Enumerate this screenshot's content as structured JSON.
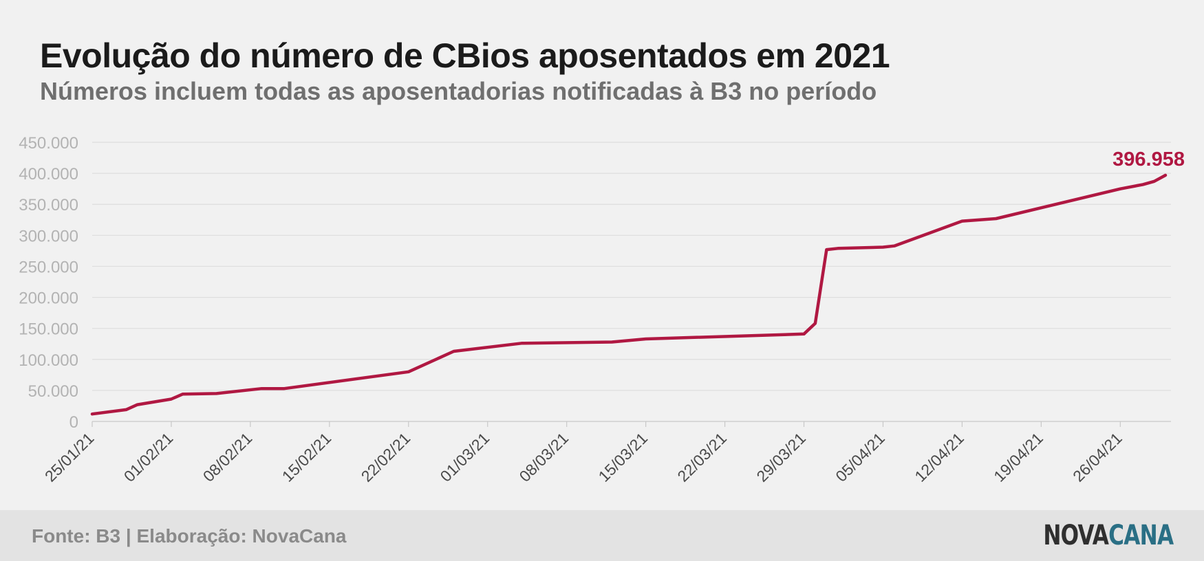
{
  "title": "Evolução do número de CBios aposentados em 2021",
  "subtitle": "Números incluem todas as aposentadorias notificadas à B3 no período",
  "footer": {
    "source": "Fonte: B3 | Elaboração: NovaCana",
    "logo_part1": "NOVA",
    "logo_part2": "CANA"
  },
  "colors": {
    "line": "#b01842",
    "grid": "#dedede",
    "tick_text": "#b3b3b3",
    "x_tick_text": "#4a4a4a",
    "logo_dark": "#2f2f2f",
    "logo_teal": "#2a6f85"
  },
  "chart_data": {
    "type": "line",
    "x_start": "25/01/21",
    "x_end": "30/04/21",
    "ylim": [
      0,
      450000
    ],
    "yticks": [
      {
        "value": 0,
        "label": "0"
      },
      {
        "value": 50000,
        "label": "50.000"
      },
      {
        "value": 100000,
        "label": "100.000"
      },
      {
        "value": 150000,
        "label": "150.000"
      },
      {
        "value": 200000,
        "label": "200.000"
      },
      {
        "value": 250000,
        "label": "250.000"
      },
      {
        "value": 300000,
        "label": "300.000"
      },
      {
        "value": 350000,
        "label": "350.000"
      },
      {
        "value": 400000,
        "label": "400.000"
      },
      {
        "value": 450000,
        "label": "450.000"
      }
    ],
    "xticks": [
      "25/01/21",
      "01/02/21",
      "08/02/21",
      "15/02/21",
      "22/02/21",
      "01/03/21",
      "08/03/21",
      "15/03/21",
      "22/03/21",
      "29/03/21",
      "05/04/21",
      "12/04/21",
      "19/04/21",
      "26/04/21"
    ],
    "grid": true,
    "end_label": "396.958",
    "series": [
      {
        "points": [
          {
            "x": "25/01/21",
            "y": 12000
          },
          {
            "x": "28/01/21",
            "y": 19000
          },
          {
            "x": "29/01/21",
            "y": 27000
          },
          {
            "x": "01/02/21",
            "y": 36000
          },
          {
            "x": "02/02/21",
            "y": 44000
          },
          {
            "x": "05/02/21",
            "y": 45000
          },
          {
            "x": "09/02/21",
            "y": 53000
          },
          {
            "x": "11/02/21",
            "y": 53000
          },
          {
            "x": "22/02/21",
            "y": 80000
          },
          {
            "x": "26/02/21",
            "y": 113000
          },
          {
            "x": "04/03/21",
            "y": 126000
          },
          {
            "x": "12/03/21",
            "y": 128000
          },
          {
            "x": "15/03/21",
            "y": 133000
          },
          {
            "x": "29/03/21",
            "y": 141000
          },
          {
            "x": "30/03/21",
            "y": 158000
          },
          {
            "x": "31/03/21",
            "y": 277000
          },
          {
            "x": "01/04/21",
            "y": 279000
          },
          {
            "x": "05/04/21",
            "y": 281000
          },
          {
            "x": "06/04/21",
            "y": 283000
          },
          {
            "x": "12/04/21",
            "y": 323000
          },
          {
            "x": "15/04/21",
            "y": 327000
          },
          {
            "x": "26/04/21",
            "y": 375000
          },
          {
            "x": "28/04/21",
            "y": 382000
          },
          {
            "x": "29/04/21",
            "y": 387000
          },
          {
            "x": "30/04/21",
            "y": 396958
          }
        ]
      }
    ]
  }
}
